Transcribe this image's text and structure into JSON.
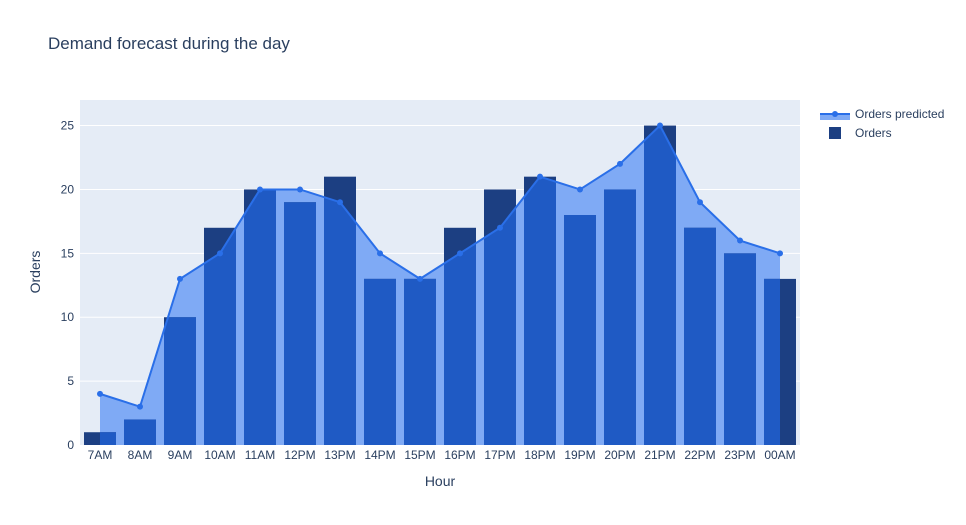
{
  "chart_data": {
    "type": "bar",
    "title": "Demand forecast during the day",
    "xlabel": "Hour",
    "ylabel": "Orders",
    "ylim": [
      0,
      27
    ],
    "yticks": [
      0,
      5,
      10,
      15,
      20,
      25
    ],
    "grid": true,
    "legend_position": "top-right",
    "categories": [
      "7AM",
      "8AM",
      "9AM",
      "10AM",
      "11AM",
      "12PM",
      "13PM",
      "14PM",
      "15PM",
      "16PM",
      "17PM",
      "18PM",
      "19PM",
      "20PM",
      "21PM",
      "22PM",
      "23PM",
      "00AM"
    ],
    "series": [
      {
        "name": "Orders predicted",
        "kind": "line-area",
        "color": "#2a6fe8",
        "fill": "#7faaf5",
        "values": [
          4,
          3,
          13,
          15,
          20,
          20,
          19,
          15,
          13,
          15,
          17,
          21,
          20,
          22,
          25,
          19,
          16,
          15
        ]
      },
      {
        "name": "Orders",
        "kind": "bar",
        "color": "#1c3f82",
        "values": [
          1,
          2,
          10,
          17,
          20,
          19,
          21,
          13,
          13,
          17,
          20,
          21,
          18,
          20,
          25,
          17,
          15,
          13
        ]
      }
    ],
    "colors": {
      "plot_bg": "#e5ecf6",
      "grid": "#ffffff",
      "overlap": "#1f5ac4",
      "text": "#2a3f5f"
    }
  }
}
